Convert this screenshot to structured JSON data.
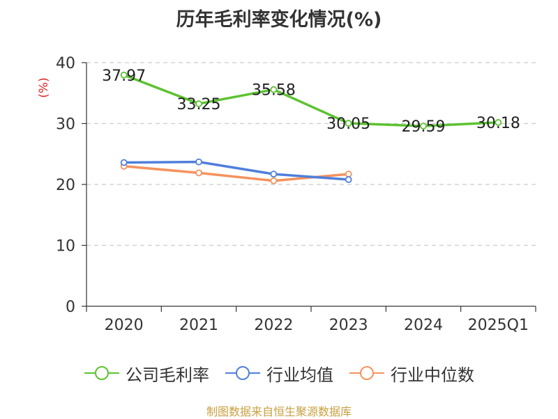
{
  "title": "历年毛利率变化情况(%)",
  "source": "制图数据来自恒生聚源数据库",
  "chart_data": {
    "type": "line",
    "title": "历年毛利率变化情况(%)",
    "ylabel": "(%)",
    "ylabel_color": "#e02020",
    "categories": [
      "2020",
      "2021",
      "2022",
      "2023",
      "2024",
      "2025Q1"
    ],
    "ylim": [
      0,
      40
    ],
    "yticks": [
      0,
      10,
      20,
      30,
      40
    ],
    "grid": true,
    "legend_position": "bottom",
    "series": [
      {
        "name": "公司毛利率",
        "color": "#5cc231",
        "values": [
          37.97,
          33.25,
          35.58,
          30.05,
          29.59,
          30.18
        ],
        "labels": [
          "37.97",
          "33.25",
          "35.58",
          "30.05",
          "29.59",
          "30.18"
        ]
      },
      {
        "name": "行业均值",
        "color": "#4f7fdb",
        "values": [
          23.6,
          23.7,
          21.7,
          20.8,
          null,
          null
        ]
      },
      {
        "name": "行业中位数",
        "color": "#f5925c",
        "values": [
          23.0,
          21.9,
          20.6,
          21.7,
          null,
          null
        ]
      }
    ]
  }
}
